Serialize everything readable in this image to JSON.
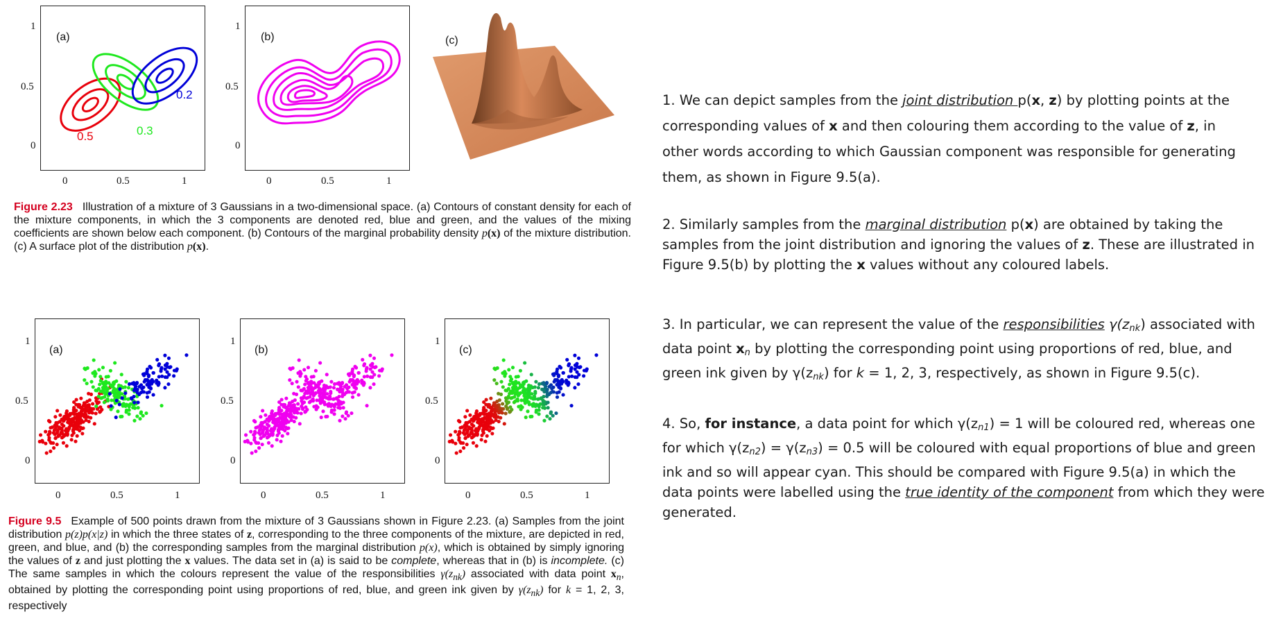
{
  "fig223": {
    "plot_a_label": "(a)",
    "plot_b_label": "(b)",
    "plot_c_label": "(c)",
    "y_ticks": [
      "1",
      "0.5",
      "0"
    ],
    "x_ticks": [
      "0",
      "0.5",
      "1"
    ],
    "component_labels": {
      "red": "0.5",
      "green": "0.3",
      "blue": "0.2"
    },
    "colors": {
      "red": "#e8000b",
      "green": "#1ee81e",
      "blue": "#0000d8",
      "magenta": "#f000f0",
      "surface": "#d9895a"
    },
    "caption_label": "Figure 2.23",
    "caption_p1": "Illustration of a mixture of 3 Gaussians in a two-dimensional space. (a) Contours of constant density for each of the mixture components, in which the 3 components are denoted red, blue and green, and the values of the mixing coefficients are shown below each component. (b) Contours of the marginal probability density ",
    "caption_m1": "p",
    "caption_m1b": "(x)",
    "caption_p2": " of the mixture distribution. (c) A surface plot of the distribution ",
    "caption_m2": "p",
    "caption_m2b": "(x)",
    "caption_p3": "."
  },
  "fig95": {
    "plot_a_label": "(a)",
    "plot_b_label": "(b)",
    "plot_c_label": "(c)",
    "y_ticks": [
      "1",
      "0.5",
      "0"
    ],
    "x_ticks": [
      "0",
      "0.5",
      "1"
    ],
    "caption_label": "Figure 9.5",
    "caption_p1": "Example of 500 points drawn from the mixture of 3 Gaussians shown in Figure 2.23. (a) Samples from the joint distribution ",
    "caption_m1": "p(z)p(x|z)",
    "caption_p2": " in which the three states of ",
    "caption_m2": "z",
    "caption_p3": ", corresponding to the three components of the mixture, are depicted in red, green, and blue, and (b) the corresponding samples from the marginal distribution ",
    "caption_m3": "p(x)",
    "caption_p4": ", which is obtained by simply ignoring the values of ",
    "caption_m4": "z",
    "caption_p5": " and just plotting the ",
    "caption_m5": "x",
    "caption_p6": " values. The data set in (a) is said to be ",
    "caption_i1": "complete",
    "caption_p7": ", whereas that in (b) is ",
    "caption_i2": "incomplete.",
    "caption_p8": " (c) The same samples in which the colours represent the value of the responsibilities ",
    "caption_m6": "γ(z",
    "caption_m6s": "nk",
    "caption_m6e": ")",
    "caption_p9": " associated with data point ",
    "caption_m7": "x",
    "caption_m7s": "n",
    "caption_p10": ", obtained by plotting the corresponding point using proportions of red, blue, and green ink given by ",
    "caption_m8": "γ(z",
    "caption_m8s": "nk",
    "caption_m8e": ")",
    "caption_p11": " for ",
    "caption_m9": "k",
    "caption_p12": " = 1, 2, 3, respectively"
  },
  "notes": {
    "p1_a": "1. We can depict samples from the ",
    "p1_u": "joint distribution ",
    "p1_b": "p(",
    "p1_x": "x",
    "p1_c": ", ",
    "p1_z": "z",
    "p1_d": ") by plotting points at the corresponding values of ",
    "p1_x2": "x",
    "p1_e": " and then colouring them according to the value of ",
    "p1_z2": "z",
    "p1_f": ", in other words according to which Gaussian component was responsible for generating them, as shown in Figure 9.5(a).",
    "p2_a": "2. Similarly samples from the ",
    "p2_u": "marginal distribution",
    "p2_b": " p(",
    "p2_x": "x",
    "p2_c": ") are obtained by taking the samples from the joint distribution and ignoring the values of ",
    "p2_z": "z",
    "p2_d": ". These are illustrated in Figure 9.5(b) by plotting the ",
    "p2_x2": "x",
    "p2_e": " values without any coloured labels.",
    "p3_a": "3. In particular, we can represent the value of the ",
    "p3_u": "responsibilities",
    "p3_b": " γ(z",
    "p3_s1": "nk",
    "p3_c": ") associated with data point ",
    "p3_x": "x",
    "p3_s2": "n",
    "p3_d": " by plotting the corresponding point using proportions of red, blue, and green ink given by γ(z",
    "p3_s3": "nk",
    "p3_e": ") for ",
    "p3_k": "k",
    "p3_f": " = 1, 2, 3, respectively, as shown in Figure 9.5(c).",
    "p4_a": "4. So, ",
    "p4_b": "for instance",
    "p4_c": ", a data point for which γ(z",
    "p4_s1": "n1",
    "p4_d": ") = 1 will be coloured red, whereas one for which γ(z",
    "p4_s2": "n2",
    "p4_e": ") = γ(z",
    "p4_s3": "n3",
    "p4_f": ") = 0.5 will be coloured with equal proportions of blue and green ink and so will appear cyan. This should be compared with Figure 9.5(a) in which the data points were labelled using the ",
    "p4_u": "true identity of the component",
    "p4_g": " from which they were generated."
  }
}
